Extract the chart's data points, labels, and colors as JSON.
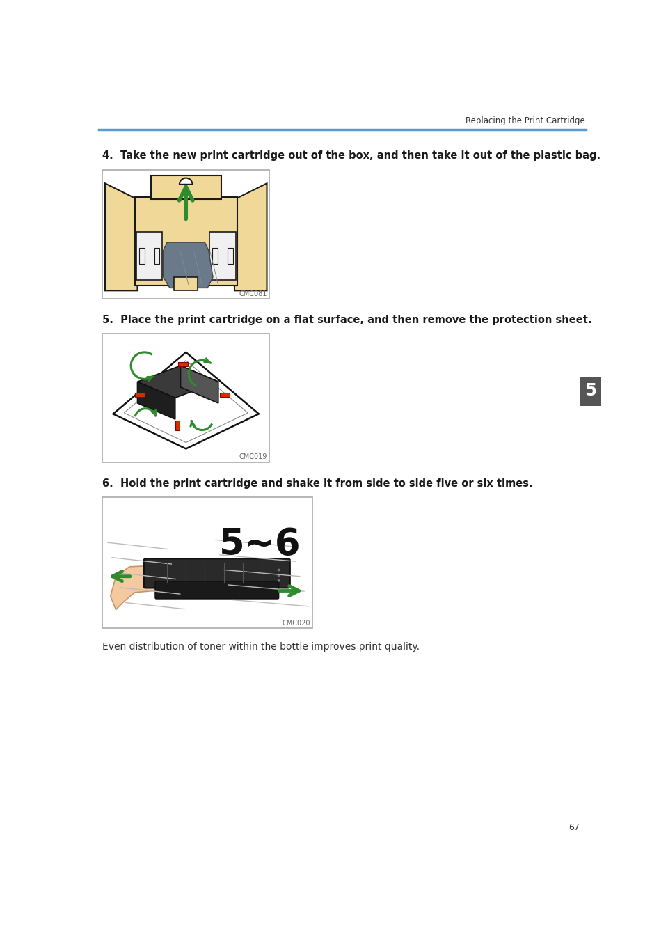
{
  "bg_color": "#ffffff",
  "header_text": "Replacing the Print Cartridge",
  "header_line_color": "#5b9bd5",
  "text_color": "#333333",
  "bold_text_color": "#1a1a1a",
  "step4_num": "4.",
  "step4_text": "  Take the new print cartridge out of the box, and then take it out of the plastic bag.",
  "step4_code": "CMC081",
  "step5_num": "5.",
  "step5_text": "  Place the print cartridge on a flat surface, and then remove the protection sheet.",
  "step5_code": "CMC019",
  "step6_num": "6.",
  "step6_text": "  Hold the print cartridge and shake it from side to side five or six times.",
  "step6_code": "CMC020",
  "note_text": "Even distribution of toner within the bottle improves print quality.",
  "page_number": "67",
  "tab_text": "5",
  "tab_bg": "#555555",
  "tab_fg": "#ffffff",
  "img_border": "#aaaaaa",
  "img_bg": "#ffffff",
  "box_color": "#f0d898",
  "box_border": "#1a1a1a",
  "green_arrow": "#2e8b2e",
  "cartridge_dark": "#2a2a2a",
  "cartridge_mid": "#444444",
  "red_strip": "#cc3300",
  "skin_color": "#f5c9a0",
  "bag_color": "#6a7a8a",
  "white_foam": "#f0f0f0"
}
